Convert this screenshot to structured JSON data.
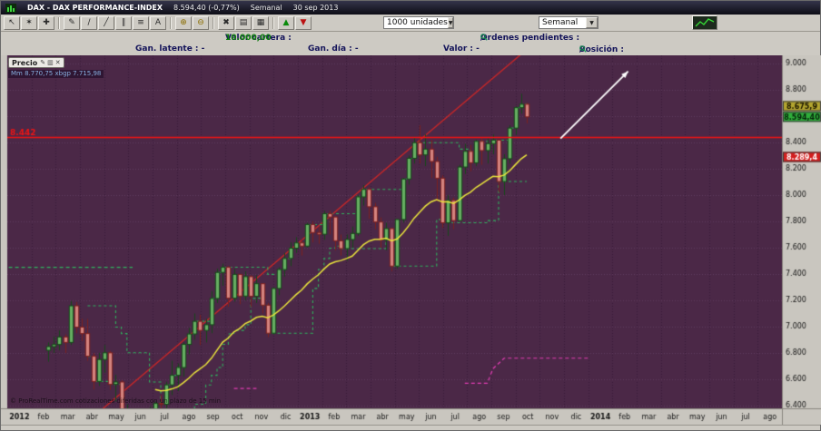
{
  "titlebar": {
    "title": "DAX - DAX PERFORMANCE-INDEX",
    "price": "8.594,40 (-0,77%)",
    "timeframe": "Semanal",
    "date": "30 sep 2013"
  },
  "toolbar": {
    "units_dropdown": "1000 unidades",
    "timeframe_dropdown": "Semanal",
    "dropdown_arrow_glyph": "▼",
    "tools": [
      {
        "name": "cursor-tool",
        "glyph": "↖"
      },
      {
        "name": "magic-wand-tool",
        "glyph": "✶"
      },
      {
        "name": "crosshair-tool",
        "glyph": "✚"
      },
      {
        "sep": true
      },
      {
        "name": "pencil-tool",
        "glyph": "✎"
      },
      {
        "name": "segment-tool",
        "glyph": "∕"
      },
      {
        "name": "trendline-tool",
        "glyph": "╱"
      },
      {
        "name": "channel-tool",
        "glyph": "∥"
      },
      {
        "name": "fibonacci-tool",
        "glyph": "≡"
      },
      {
        "name": "text-tool",
        "glyph": "A"
      },
      {
        "sep": true
      },
      {
        "name": "zoom-in-tool",
        "glyph": "⊕",
        "color": "#8a6d00"
      },
      {
        "name": "zoom-out-tool",
        "glyph": "⊖",
        "color": "#8a6d00"
      },
      {
        "sep": true
      },
      {
        "name": "delete-tool",
        "glyph": "✖"
      },
      {
        "name": "print-tool",
        "glyph": "▤"
      },
      {
        "name": "chart-style-tool",
        "glyph": "▦"
      },
      {
        "sep": true
      },
      {
        "name": "buy-arrow-tool",
        "glyph": "▲",
        "color": "#0a8a0a"
      },
      {
        "name": "sell-arrow-tool",
        "glyph": "▼",
        "color": "#bb1111"
      }
    ]
  },
  "account": {
    "portfolio_label": "Valor cartera :",
    "portfolio_value": "10.000,00",
    "pending_orders_label": "Ordenes pendientes :",
    "pending_orders_value": "0",
    "pending_orders_sep": "/",
    "pending_orders_value2": "0",
    "latent_gain": "Gan. latente : -",
    "day_gain": "Gan. día : -",
    "value": "Valor : -",
    "position_label": "Posición :",
    "position_value": "0",
    "position_sep": "/",
    "position_value2": "0"
  },
  "chart": {
    "panel_label": "Precio",
    "panel_icons": [
      {
        "name": "pencil-icon",
        "glyph": "✎"
      },
      {
        "name": "panel-icon",
        "glyph": "▥"
      },
      {
        "name": "close-icon",
        "glyph": "✕"
      }
    ],
    "legend": "Mm 8.770,75   xbgp 7.715,98",
    "watermark": "© ProRealTime.com cotizaciones diferidas con un plazo de 15 min"
  },
  "chart_data": {
    "type": "candlestick",
    "symbol": "DAX PERFORMANCE-INDEX",
    "timeframe": "Semanal",
    "last_close": "8.594,40",
    "ylim": [
      6379,
      9041
    ],
    "price_ticks": [
      [
        9000,
        "9.000"
      ],
      [
        8800,
        "8.800"
      ],
      [
        8600,
        "8.600"
      ],
      [
        8400,
        "8.400"
      ],
      [
        8200,
        "8.200"
      ],
      [
        8000,
        "8.000"
      ],
      [
        7800,
        "7.800"
      ],
      [
        7600,
        "7.600"
      ],
      [
        7400,
        "7.400"
      ],
      [
        7200,
        "7.200"
      ],
      [
        7000,
        "7.000"
      ],
      [
        6800,
        "6.800"
      ],
      [
        6600,
        "6.600"
      ],
      [
        6400,
        "6.400"
      ]
    ],
    "months": [
      "2012",
      "feb",
      "mar",
      "abr",
      "may",
      "jun",
      "jul",
      "ago",
      "sep",
      "oct",
      "nov",
      "dic",
      "2013",
      "feb",
      "mar",
      "abr",
      "may",
      "jun",
      "jul",
      "ago",
      "sep",
      "oct",
      "nov",
      "dic",
      "2014",
      "feb",
      "mar",
      "abr",
      "may",
      "jun",
      "jul",
      "ago"
    ],
    "candles": [
      [
        6820,
        6880,
        6733,
        6848
      ],
      [
        6848,
        6925,
        6800,
        6864
      ],
      [
        6864,
        6971,
        6820,
        6921
      ],
      [
        6921,
        6941,
        6800,
        6880
      ],
      [
        6880,
        7194,
        6860,
        7158
      ],
      [
        7158,
        7187,
        6950,
        6996
      ],
      [
        6996,
        7060,
        6890,
        6947
      ],
      [
        6947,
        7058,
        6740,
        6775
      ],
      [
        6775,
        6800,
        6523,
        6583
      ],
      [
        6583,
        6801,
        6550,
        6750
      ],
      [
        6750,
        6860,
        6650,
        6801
      ],
      [
        6801,
        6815,
        6520,
        6561
      ],
      [
        6561,
        6633,
        6430,
        6579
      ],
      [
        6579,
        6593,
        6200,
        6271
      ],
      [
        6271,
        6410,
        6230,
        6339
      ],
      [
        6339,
        6340,
        5990,
        6050
      ],
      [
        6050,
        6185,
        5969,
        6144
      ],
      [
        6144,
        6290,
        6060,
        6229
      ],
      [
        6229,
        6390,
        6130,
        6263
      ],
      [
        6263,
        6430,
        6190,
        6416
      ],
      [
        6416,
        6480,
        6280,
        6410
      ],
      [
        6410,
        6580,
        6330,
        6557
      ],
      [
        6557,
        6740,
        6480,
        6630
      ],
      [
        6630,
        6720,
        6510,
        6689
      ],
      [
        6689,
        6880,
        6620,
        6865
      ],
      [
        6865,
        6990,
        6790,
        6944
      ],
      [
        6944,
        7100,
        6900,
        7040
      ],
      [
        7040,
        7090,
        6860,
        6971
      ],
      [
        6971,
        7060,
        6880,
        7014
      ],
      [
        7014,
        7270,
        6950,
        7214
      ],
      [
        7214,
        7440,
        7180,
        7412
      ],
      [
        7412,
        7478,
        7310,
        7451
      ],
      [
        7451,
        7460,
        7150,
        7216
      ],
      [
        7216,
        7440,
        7190,
        7397
      ],
      [
        7397,
        7400,
        7170,
        7232
      ],
      [
        7232,
        7420,
        7200,
        7380
      ],
      [
        7380,
        7390,
        7150,
        7231
      ],
      [
        7231,
        7390,
        7180,
        7326
      ],
      [
        7326,
        7330,
        7100,
        7163
      ],
      [
        7163,
        7180,
        6920,
        6950
      ],
      [
        6950,
        7300,
        6940,
        7290
      ],
      [
        7290,
        7450,
        7240,
        7434
      ],
      [
        7434,
        7560,
        7380,
        7518
      ],
      [
        7518,
        7640,
        7460,
        7596
      ],
      [
        7596,
        7680,
        7560,
        7636
      ],
      [
        7636,
        7660,
        7540,
        7612
      ],
      [
        7612,
        7790,
        7600,
        7776
      ],
      [
        7776,
        7800,
        7640,
        7715
      ],
      [
        7715,
        7760,
        7630,
        7702
      ],
      [
        7702,
        7880,
        7660,
        7858
      ],
      [
        7858,
        7880,
        7700,
        7833
      ],
      [
        7833,
        7840,
        7580,
        7652
      ],
      [
        7652,
        7700,
        7540,
        7593
      ],
      [
        7593,
        7700,
        7500,
        7662
      ],
      [
        7662,
        7760,
        7600,
        7708
      ],
      [
        7708,
        8000,
        7690,
        7986
      ],
      [
        7986,
        8074,
        7920,
        8043
      ],
      [
        8043,
        8060,
        7820,
        7911
      ],
      [
        7911,
        7940,
        7740,
        7795
      ],
      [
        7795,
        7830,
        7600,
        7659
      ],
      [
        7659,
        7790,
        7580,
        7745
      ],
      [
        7745,
        7750,
        7420,
        7460
      ],
      [
        7460,
        7820,
        7440,
        7814
      ],
      [
        7814,
        8130,
        7790,
        8122
      ],
      [
        8122,
        8300,
        8080,
        8279
      ],
      [
        8279,
        8435,
        8240,
        8398
      ],
      [
        8398,
        8530,
        8240,
        8305
      ],
      [
        8305,
        8460,
        8220,
        8349
      ],
      [
        8349,
        8420,
        8130,
        8255
      ],
      [
        8255,
        8290,
        7950,
        8128
      ],
      [
        8128,
        8150,
        7750,
        7789
      ],
      [
        7789,
        8000,
        7690,
        7959
      ],
      [
        7959,
        7980,
        7740,
        7806
      ],
      [
        7806,
        8230,
        7800,
        8213
      ],
      [
        8213,
        8390,
        8160,
        8332
      ],
      [
        8332,
        8380,
        8180,
        8245
      ],
      [
        8245,
        8420,
        8220,
        8408
      ],
      [
        8408,
        8440,
        8230,
        8338
      ],
      [
        8338,
        8430,
        8240,
        8391
      ],
      [
        8391,
        8460,
        8310,
        8417
      ],
      [
        8417,
        8420,
        8020,
        8103
      ],
      [
        8103,
        8310,
        8000,
        8276
      ],
      [
        8276,
        8530,
        8240,
        8509
      ],
      [
        8509,
        8675,
        8460,
        8664
      ],
      [
        8664,
        8770,
        8620,
        8690
      ],
      [
        8690,
        8700,
        8545,
        8594
      ]
    ],
    "ma_period": 20,
    "band_period": 8,
    "hline": {
      "price": 8442,
      "label": "8.442"
    },
    "trendline": {
      "points": [
        [
          9,
          6350
        ],
        [
          84,
          9070
        ]
      ]
    },
    "arrow": {
      "from": [
        91,
        8430
      ],
      "to": [
        103,
        8940
      ]
    },
    "segments": [
      {
        "color": "#2fb45e",
        "points": [
          [
            -7,
            7450
          ],
          [
            15,
            7450
          ]
        ]
      },
      {
        "color": "#e23cb4",
        "points": [
          [
            33,
            6530
          ],
          [
            37,
            6530
          ]
        ]
      },
      {
        "color": "#e23cb4",
        "points": [
          [
            74,
            6570
          ],
          [
            78,
            6570
          ],
          [
            79,
            6680
          ],
          [
            81,
            6760
          ],
          [
            96,
            6760
          ]
        ]
      }
    ],
    "price_markers": [
      {
        "label": "8.675,9",
        "price": 8675.9,
        "bg": "#b3a52e",
        "fg": "#181400"
      },
      {
        "label": "8.594,40",
        "price": 8594.4,
        "bg": "#2fae3a",
        "fg": "#06230b"
      },
      {
        "label": "8.289,4",
        "price": 8289.4,
        "bg": "#d31f1f",
        "fg": "#ffffff"
      }
    ],
    "colors": {
      "bg": "#4b2847",
      "grid_v": "#381c38",
      "grid_h": "#5f3a5f",
      "up": "#66ae62",
      "up_border": "#16491a",
      "down": "#d4837e",
      "down_border": "#7c2020",
      "ma": "#eae43c",
      "band": "#2fb45e",
      "hline": "#f01414",
      "trend": "#cf2626",
      "arrow": "#ffffff",
      "axis_bg": "#c9c6bf",
      "axis_border": "#8a877f",
      "axis_text": "#161616"
    }
  }
}
